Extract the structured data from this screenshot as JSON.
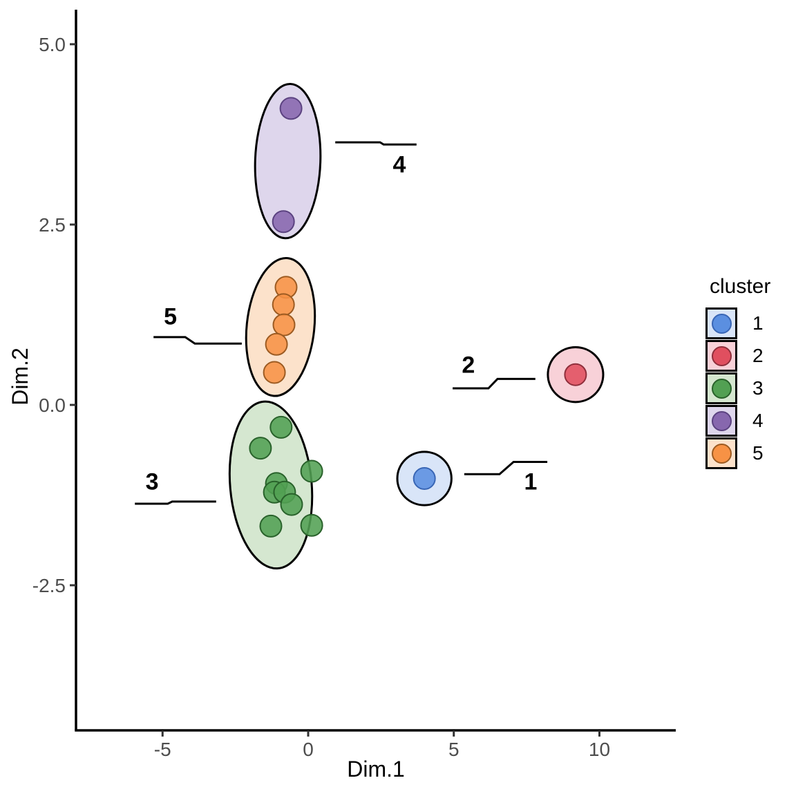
{
  "chart_data": {
    "type": "scatter",
    "title": "",
    "xlabel": "Dim.1",
    "ylabel": "Dim.2",
    "grid": false,
    "xlim": [
      -8,
      12.6
    ],
    "ylim": [
      -4.5,
      5.5
    ],
    "x_ticks": [
      {
        "v": -5,
        "label": "-5"
      },
      {
        "v": 0,
        "label": "0"
      },
      {
        "v": 5,
        "label": "5"
      },
      {
        "v": 10,
        "label": "10"
      }
    ],
    "y_ticks": [
      {
        "v": 5,
        "label": "5.0"
      },
      {
        "v": 2.5,
        "label": "2.5"
      },
      {
        "v": 0,
        "label": "0.0"
      },
      {
        "v": -2.5,
        "label": "-2.5"
      }
    ],
    "legend": {
      "title": "cluster",
      "position": "right",
      "entries": [
        {
          "label": "1",
          "color": "#5B8FE0",
          "stroke": "#3966B5",
          "fill_light": "#D9E5F8"
        },
        {
          "label": "2",
          "color": "#E04F5F",
          "stroke": "#8F2F3C",
          "fill_light": "#F8D1D8"
        },
        {
          "label": "3",
          "color": "#52A053",
          "stroke": "#29622B",
          "fill_light": "#D5E7D0"
        },
        {
          "label": "4",
          "color": "#8767AE",
          "stroke": "#5B4280",
          "fill_light": "#DED6EC"
        },
        {
          "label": "5",
          "color": "#F79245",
          "stroke": "#9C5B22",
          "fill_light": "#FCE2CB"
        }
      ]
    },
    "clusters": [
      {
        "id": "1",
        "color": "#5B8FE0",
        "stroke": "#3966B5",
        "fill_light": "#D9E5F8",
        "points": [
          [
            3.99,
            -1.02
          ]
        ],
        "ellipse": {
          "cx": 3.99,
          "cy": -1.02,
          "rx": 0.93,
          "ry": 0.37,
          "angle": 0
        },
        "label": {
          "text": "1",
          "x": 7.64,
          "y": -1.06
        },
        "leader": [
          [
            5.36,
            -0.96
          ],
          [
            6.57,
            -0.96
          ],
          [
            7.05,
            -0.79
          ],
          [
            8.21,
            -0.79
          ]
        ]
      },
      {
        "id": "2",
        "color": "#E04F5F",
        "stroke": "#8F2F3C",
        "fill_light": "#F8D1D8",
        "points": [
          [
            9.18,
            0.42
          ]
        ],
        "ellipse": {
          "cx": 9.18,
          "cy": 0.42,
          "rx": 0.95,
          "ry": 0.38,
          "angle": 0
        },
        "label": {
          "text": "2",
          "x": 5.5,
          "y": 0.56
        },
        "leader": [
          [
            4.96,
            0.23
          ],
          [
            6.19,
            0.23
          ],
          [
            6.5,
            0.36
          ],
          [
            7.8,
            0.36
          ]
        ]
      },
      {
        "id": "3",
        "color": "#52A053",
        "stroke": "#29622B",
        "fill_light": "#D5E7D0",
        "points": [
          [
            -0.93,
            -0.31
          ],
          [
            -1.64,
            -0.6
          ],
          [
            0.12,
            -0.92
          ],
          [
            -1.09,
            -1.09
          ],
          [
            -1.16,
            -1.21
          ],
          [
            -0.81,
            -1.21
          ],
          [
            -0.57,
            -1.38
          ],
          [
            -1.28,
            -1.68
          ],
          [
            0.12,
            -1.67
          ]
        ],
        "ellipse": {
          "cx": -1.28,
          "cy": -1.11,
          "rx": 1.4,
          "ry": 1.16,
          "angle": -5
        },
        "label": {
          "text": "3",
          "x": -5.36,
          "y": -1.06
        },
        "leader": [
          [
            -5.95,
            -1.37
          ],
          [
            -4.82,
            -1.37
          ],
          [
            -4.67,
            -1.34
          ],
          [
            -3.16,
            -1.34
          ]
        ]
      },
      {
        "id": "4",
        "color": "#8767AE",
        "stroke": "#5B4280",
        "fill_light": "#DED6EC",
        "points": [
          [
            -0.59,
            4.11
          ],
          [
            -0.85,
            2.54
          ]
        ],
        "ellipse": {
          "cx": -0.7,
          "cy": 3.38,
          "rx": 1.12,
          "ry": 1.07,
          "angle": 2
        },
        "label": {
          "text": "4",
          "x": 3.13,
          "y": 3.34
        },
        "leader": [
          [
            0.93,
            3.64
          ],
          [
            2.47,
            3.64
          ],
          [
            2.59,
            3.61
          ],
          [
            3.72,
            3.61
          ]
        ]
      },
      {
        "id": "5",
        "color": "#F79245",
        "stroke": "#9C5B22",
        "fill_light": "#FCE2CB",
        "points": [
          [
            -0.76,
            1.63
          ],
          [
            -0.85,
            1.39
          ],
          [
            -0.83,
            1.11
          ],
          [
            -1.09,
            0.84
          ],
          [
            -1.16,
            0.45
          ]
        ],
        "ellipse": {
          "cx": -0.95,
          "cy": 1.08,
          "rx": 1.16,
          "ry": 0.96,
          "angle": 6
        },
        "label": {
          "text": "5",
          "x": -4.73,
          "y": 1.23
        },
        "leader": [
          [
            -5.31,
            0.94
          ],
          [
            -4.22,
            0.94
          ],
          [
            -3.89,
            0.85
          ],
          [
            -2.28,
            0.85
          ]
        ]
      }
    ]
  }
}
